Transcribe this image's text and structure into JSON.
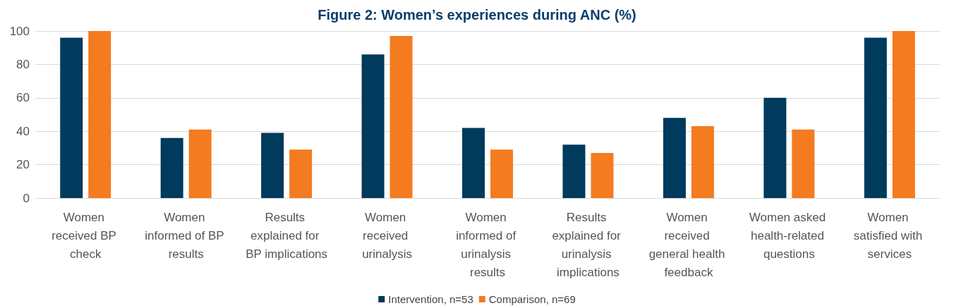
{
  "chart_data": {
    "type": "bar",
    "title": "Figure 2: Women’s experiences during ANC (%)",
    "categories": [
      "Women received BP check",
      "Women informed of BP results",
      "Results explained for BP implications",
      "Women received urinalysis",
      "Women informed of urinalysis results",
      "Results explained for urinalysis implications",
      "Women received general health feedback",
      "Women asked health-related questions",
      "Women satisfied with services"
    ],
    "series": [
      {
        "name": "Intervention, n=53",
        "color": "#003a5c",
        "values": [
          96,
          36,
          39,
          86,
          42,
          32,
          48,
          60,
          96
        ]
      },
      {
        "name": "Comparison, n=69",
        "color": "#f47b20",
        "values": [
          100,
          41,
          29,
          97,
          29,
          27,
          43,
          41,
          100
        ]
      }
    ],
    "ylim": [
      0,
      100
    ],
    "yticks": [
      0,
      20,
      40,
      60,
      80,
      100
    ],
    "grid": "y",
    "legend": "bottom"
  }
}
